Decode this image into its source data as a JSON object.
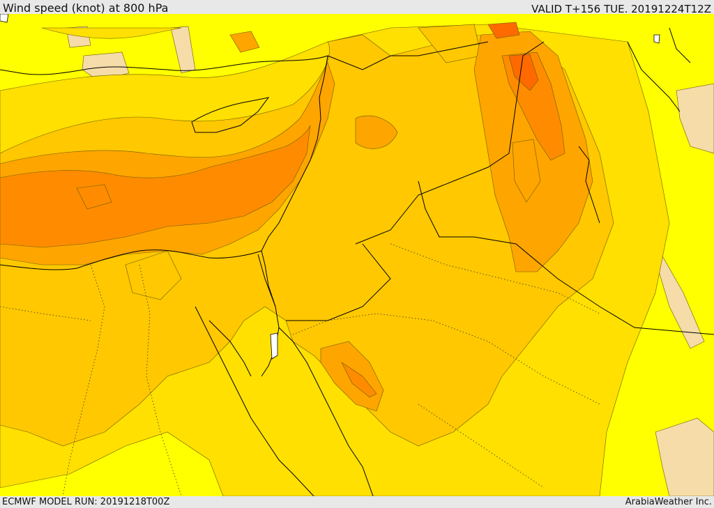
{
  "header": {
    "title": "Wind speed (knot) at 800 hPa",
    "valid": "VALID T+156 TUE. 20191224T12Z"
  },
  "footer": {
    "model_run": "ECMWF MODEL RUN: 20191218T00Z",
    "credit": "ArabiaWeather Inc."
  },
  "map": {
    "variable": "wind speed",
    "units": "knot",
    "level": "800 hPa",
    "colors": {
      "band_1": "#ffeeaa",
      "band_2": "#ffff00",
      "band_3": "#ffe000",
      "band_4": "#ffc800",
      "band_5": "#ffa500",
      "band_6": "#ff8c00",
      "band_7": "#ff6a00",
      "band_8": "#f0d0b0",
      "water_white": "#ffffff",
      "coastline": "#000000"
    }
  }
}
